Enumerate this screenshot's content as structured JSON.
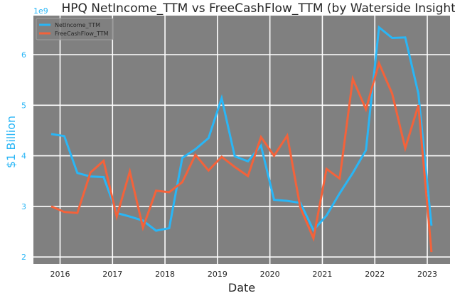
{
  "chart_data": {
    "type": "line",
    "title": "HPQ NetIncome_TTM vs FreeCashFlow_TTM (by Waterside Insight)",
    "xlabel": "Date",
    "ylabel": "$1 Billion",
    "y_offset_label": "1e9",
    "ylim": [
      1.87,
      6.77
    ],
    "xlim": [
      2015.5,
      2023.45
    ],
    "y_ticks": [
      2,
      3,
      4,
      5,
      6
    ],
    "x_ticks": [
      2016,
      2017,
      2018,
      2019,
      2020,
      2021,
      2022,
      2023
    ],
    "grid": true,
    "legend_position": "upper left",
    "background": "#808080",
    "x": [
      2015.83,
      2016.08,
      2016.33,
      2016.58,
      2016.83,
      2017.08,
      2017.33,
      2017.58,
      2017.83,
      2018.08,
      2018.33,
      2018.58,
      2018.83,
      2019.08,
      2019.33,
      2019.58,
      2019.83,
      2020.08,
      2020.33,
      2020.58,
      2020.83,
      2021.08,
      2021.33,
      2021.58,
      2021.83,
      2022.08,
      2022.33,
      2022.58,
      2022.83,
      2023.08
    ],
    "series": [
      {
        "name": "NetIncome_TTM",
        "color": "#29b6f6",
        "values": [
          4.43,
          4.39,
          3.66,
          3.59,
          3.58,
          2.87,
          2.8,
          2.72,
          2.52,
          2.57,
          3.96,
          4.13,
          4.35,
          5.14,
          3.99,
          3.89,
          4.2,
          3.13,
          3.11,
          3.07,
          2.53,
          2.82,
          3.26,
          3.66,
          4.11,
          6.54,
          6.33,
          6.34,
          5.23,
          2.62
        ]
      },
      {
        "name": "FreeCashFlow_TTM",
        "color": "#f4623a",
        "values": [
          3.0,
          2.89,
          2.87,
          3.67,
          3.9,
          2.8,
          3.69,
          2.58,
          3.31,
          3.28,
          3.48,
          4.02,
          3.71,
          3.98,
          3.78,
          3.6,
          4.37,
          4.0,
          4.4,
          2.98,
          2.37,
          3.74,
          3.55,
          5.52,
          4.92,
          5.83,
          5.23,
          4.15,
          5.0,
          2.1
        ]
      }
    ]
  }
}
